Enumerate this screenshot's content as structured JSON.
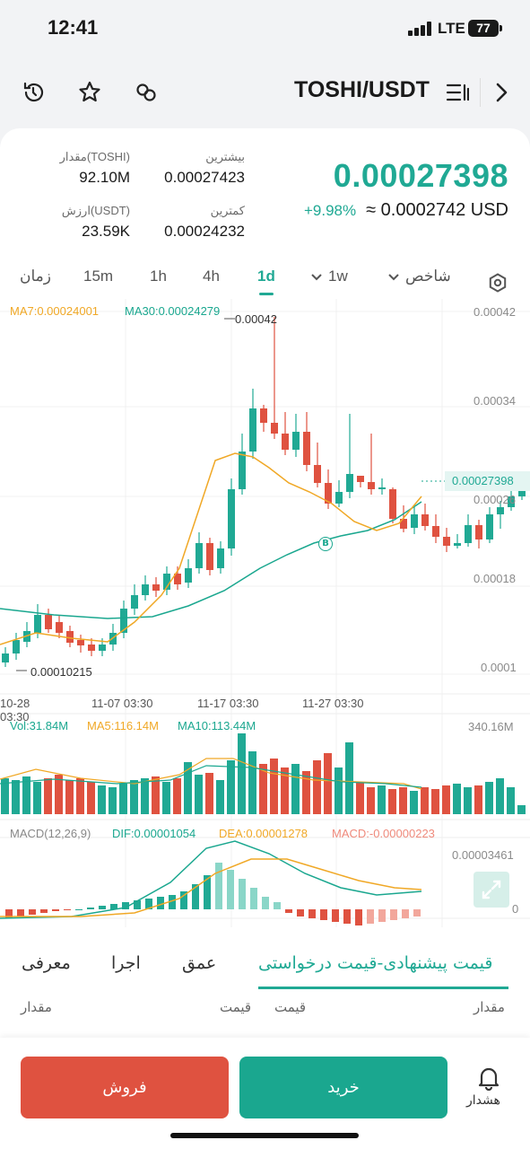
{
  "status": {
    "time": "12:41",
    "network": "LTE",
    "battery": "77"
  },
  "header": {
    "pair": "TOSHI/USDT"
  },
  "ticker": {
    "last_price": "0.00027398",
    "change": "+9.98%",
    "usd_approx": "≈ 0.0002742 USD",
    "high_label": "بیشترین",
    "high_value": "0.00027423",
    "low_label": "کمترین",
    "low_value": "0.00024232",
    "vol_label": "مقدار(TOSHI)",
    "vol_value": "92.10M",
    "turnover_label": "ارزش(USDT)",
    "turnover_value": "23.59K"
  },
  "timeframes": {
    "time": "زمان",
    "m15": "15m",
    "h1": "1h",
    "h4": "4h",
    "d1": "1d",
    "w1": "1w",
    "indicator": "شاخص"
  },
  "colors": {
    "up": "#20a994",
    "down": "#df5240",
    "ma7": "#f0a826",
    "ma30": "#1aa78f"
  },
  "main_chart": {
    "ma7_label": "MA7:0.00024001",
    "ma30_label": "MA30:0.00024279",
    "max_label": "0.00042",
    "min_label": "0.00010215",
    "y_ticks": [
      "0.00042",
      "0.00034",
      "0.00026",
      "0.00018",
      "0.0001"
    ],
    "current_price": "0.00027398",
    "x_ticks": [
      "10-28 03:30",
      "11-07 03:30",
      "11-17 03:30",
      "11-27 03:30"
    ],
    "marker": "B"
  },
  "volume": {
    "vol_label": "Vol:31.84M",
    "ma5_label": "MA5:116.14M",
    "ma10_label": "MA10:113.44M",
    "max_label": "340.16M"
  },
  "macd": {
    "title": "MACD(12,26,9)",
    "dif": "DIF:0.00001054",
    "dea": "DEA:0.00001278",
    "macd": "MACD:-0.00000223",
    "max_label": "0.00003461",
    "zero_label": "0"
  },
  "orderbook": {
    "tab_book": "قیمت پیشنهادی-قیمت درخواستی",
    "tab_depth": "عمق",
    "tab_trades": "اجرا",
    "tab_info": "معرفی",
    "col_amount_right": "مقدار",
    "col_price_right": "قیمت",
    "col_price_left": "قیمت",
    "col_amount_left": "مقدار"
  },
  "actions": {
    "sell": "فروش",
    "buy": "خرید",
    "alert": "هشدار"
  }
}
